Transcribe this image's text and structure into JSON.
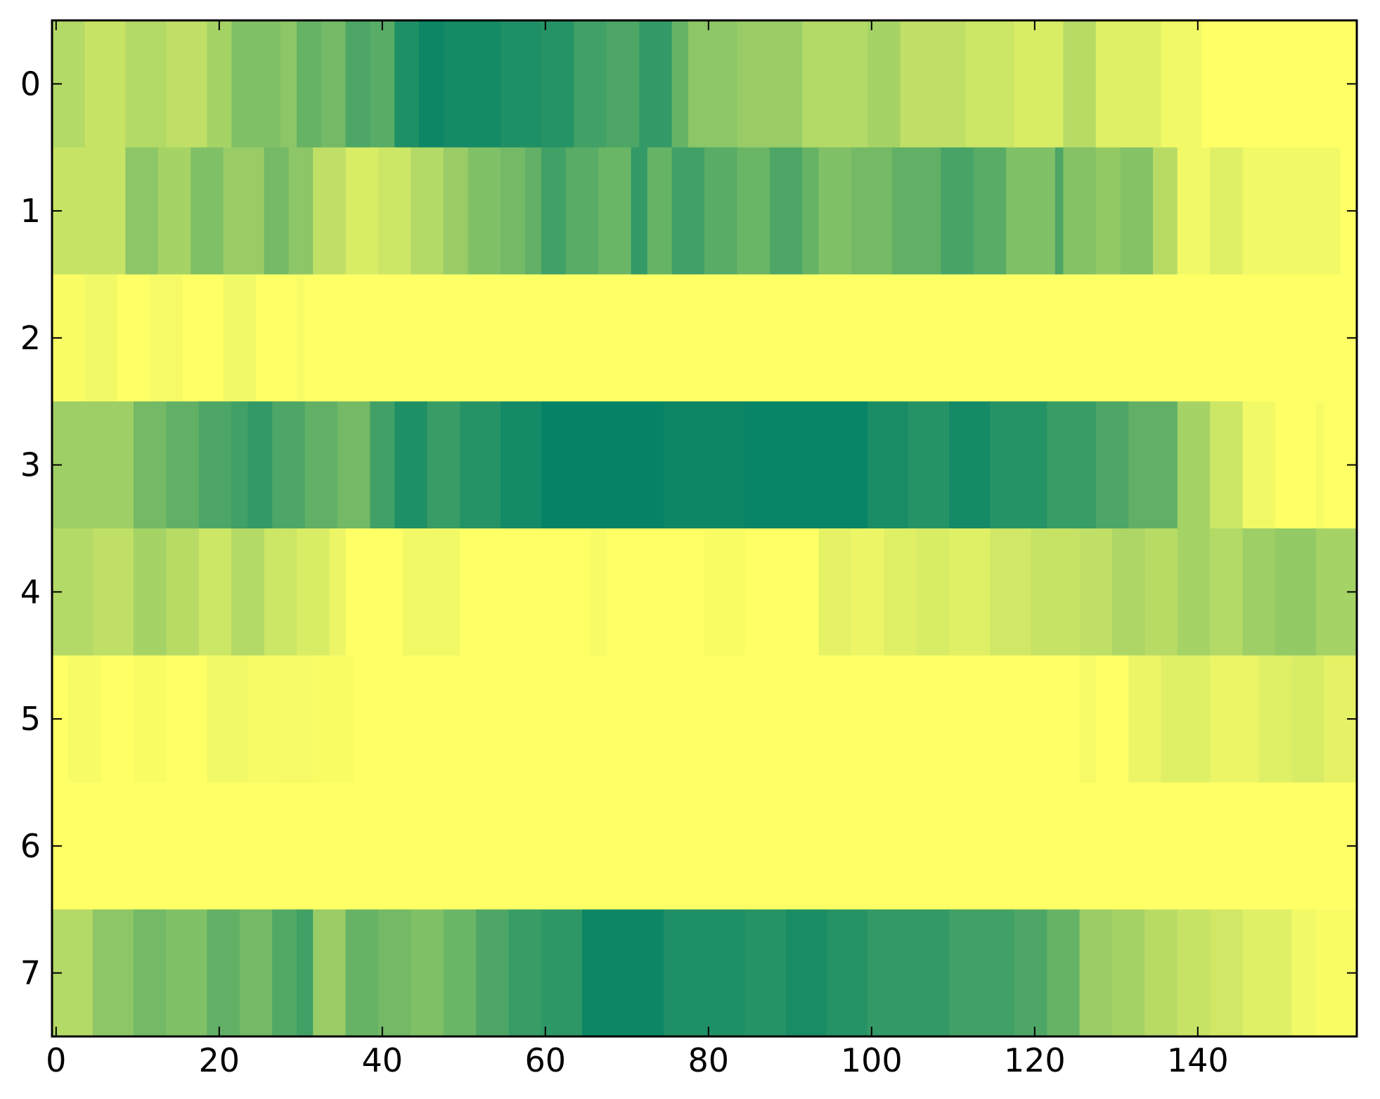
{
  "chart_data": {
    "type": "heatmap",
    "colormap": "summer_r",
    "color_low": "#ffff66",
    "color_high": "#008066",
    "x_range": [
      -0.5,
      159.5
    ],
    "y_range": [
      -0.5,
      7.5
    ],
    "x_ticks": [
      0,
      20,
      40,
      60,
      80,
      100,
      120,
      140
    ],
    "y_ticks": [
      0,
      1,
      2,
      3,
      4,
      5,
      6,
      7
    ],
    "grid": false,
    "colorbar": false,
    "value_range": [
      0,
      1
    ],
    "rows": [
      {
        "row": 0,
        "segments": [
          [
            0,
            0.3
          ],
          [
            4,
            0.22
          ],
          [
            9,
            0.3
          ],
          [
            14,
            0.25
          ],
          [
            19,
            0.35
          ],
          [
            22,
            0.5
          ],
          [
            28,
            0.45
          ],
          [
            30,
            0.6
          ],
          [
            33,
            0.55
          ],
          [
            36,
            0.7
          ],
          [
            39,
            0.65
          ],
          [
            42,
            0.88
          ],
          [
            45,
            0.95
          ],
          [
            48,
            0.92
          ],
          [
            55,
            0.88
          ],
          [
            60,
            0.85
          ],
          [
            64,
            0.75
          ],
          [
            68,
            0.7
          ],
          [
            72,
            0.8
          ],
          [
            76,
            0.6
          ],
          [
            78,
            0.45
          ],
          [
            84,
            0.4
          ],
          [
            92,
            0.3
          ],
          [
            100,
            0.35
          ],
          [
            104,
            0.25
          ],
          [
            112,
            0.2
          ],
          [
            118,
            0.15
          ],
          [
            124,
            0.28
          ],
          [
            128,
            0.12
          ],
          [
            136,
            0.05
          ],
          [
            141,
            0.0
          ]
        ]
      },
      {
        "row": 1,
        "segments": [
          [
            0,
            0.22
          ],
          [
            9,
            0.45
          ],
          [
            13,
            0.35
          ],
          [
            17,
            0.5
          ],
          [
            21,
            0.4
          ],
          [
            26,
            0.55
          ],
          [
            29,
            0.45
          ],
          [
            32,
            0.25
          ],
          [
            36,
            0.15
          ],
          [
            40,
            0.2
          ],
          [
            44,
            0.3
          ],
          [
            48,
            0.4
          ],
          [
            51,
            0.5
          ],
          [
            55,
            0.55
          ],
          [
            58,
            0.62
          ],
          [
            60,
            0.75
          ],
          [
            63,
            0.65
          ],
          [
            67,
            0.58
          ],
          [
            71,
            0.8
          ],
          [
            73,
            0.6
          ],
          [
            76,
            0.75
          ],
          [
            80,
            0.65
          ],
          [
            84,
            0.58
          ],
          [
            88,
            0.7
          ],
          [
            92,
            0.6
          ],
          [
            94,
            0.5
          ],
          [
            98,
            0.55
          ],
          [
            103,
            0.62
          ],
          [
            109,
            0.72
          ],
          [
            113,
            0.65
          ],
          [
            117,
            0.5
          ],
          [
            123,
            0.7
          ],
          [
            124,
            0.48
          ],
          [
            128,
            0.42
          ],
          [
            131,
            0.48
          ],
          [
            135,
            0.28
          ],
          [
            138,
            0.05
          ],
          [
            142,
            0.12
          ],
          [
            146,
            0.05
          ],
          [
            158,
            0.0
          ]
        ]
      },
      {
        "row": 2,
        "segments": [
          [
            0,
            0.02
          ],
          [
            4,
            0.05
          ],
          [
            8,
            0.0
          ],
          [
            12,
            0.04
          ],
          [
            16,
            0.0
          ],
          [
            21,
            0.05
          ],
          [
            25,
            0.0
          ],
          [
            30,
            0.03
          ],
          [
            31,
            0.0
          ],
          [
            44,
            0.0
          ],
          [
            160,
            0.0
          ]
        ]
      },
      {
        "row": 3,
        "segments": [
          [
            0,
            0.38
          ],
          [
            10,
            0.55
          ],
          [
            14,
            0.62
          ],
          [
            18,
            0.7
          ],
          [
            22,
            0.75
          ],
          [
            24,
            0.8
          ],
          [
            27,
            0.7
          ],
          [
            31,
            0.62
          ],
          [
            35,
            0.55
          ],
          [
            39,
            0.75
          ],
          [
            42,
            0.88
          ],
          [
            46,
            0.78
          ],
          [
            50,
            0.85
          ],
          [
            55,
            0.92
          ],
          [
            60,
            0.98
          ],
          [
            75,
            0.95
          ],
          [
            85,
            0.97
          ],
          [
            100,
            0.9
          ],
          [
            105,
            0.85
          ],
          [
            110,
            0.92
          ],
          [
            115,
            0.85
          ],
          [
            122,
            0.78
          ],
          [
            128,
            0.7
          ],
          [
            132,
            0.62
          ],
          [
            138,
            0.35
          ],
          [
            142,
            0.2
          ],
          [
            146,
            0.05
          ],
          [
            150,
            0.0
          ],
          [
            155,
            0.03
          ],
          [
            156,
            0.0
          ]
        ]
      },
      {
        "row": 4,
        "segments": [
          [
            0,
            0.3
          ],
          [
            5,
            0.25
          ],
          [
            10,
            0.35
          ],
          [
            14,
            0.28
          ],
          [
            18,
            0.2
          ],
          [
            22,
            0.3
          ],
          [
            26,
            0.2
          ],
          [
            30,
            0.15
          ],
          [
            34,
            0.08
          ],
          [
            36,
            0.0
          ],
          [
            43,
            0.05
          ],
          [
            50,
            0.0
          ],
          [
            66,
            0.03
          ],
          [
            68,
            0.0
          ],
          [
            80,
            0.02
          ],
          [
            85,
            0.0
          ],
          [
            94,
            0.1
          ],
          [
            98,
            0.08
          ],
          [
            102,
            0.12
          ],
          [
            106,
            0.15
          ],
          [
            110,
            0.12
          ],
          [
            115,
            0.18
          ],
          [
            120,
            0.22
          ],
          [
            126,
            0.25
          ],
          [
            130,
            0.32
          ],
          [
            134,
            0.28
          ],
          [
            138,
            0.35
          ],
          [
            142,
            0.3
          ],
          [
            146,
            0.38
          ],
          [
            150,
            0.42
          ],
          [
            155,
            0.35
          ]
        ]
      },
      {
        "row": 5,
        "segments": [
          [
            0,
            0.0
          ],
          [
            2,
            0.03
          ],
          [
            6,
            0.0
          ],
          [
            10,
            0.02
          ],
          [
            14,
            0.0
          ],
          [
            19,
            0.05
          ],
          [
            24,
            0.03
          ],
          [
            28,
            0.04
          ],
          [
            32,
            0.02
          ],
          [
            37,
            0.0
          ],
          [
            126,
            0.04
          ],
          [
            128,
            0.0
          ],
          [
            132,
            0.08
          ],
          [
            136,
            0.12
          ],
          [
            142,
            0.08
          ],
          [
            148,
            0.12
          ],
          [
            152,
            0.15
          ],
          [
            156,
            0.1
          ]
        ]
      },
      {
        "row": 6,
        "segments": [
          [
            0,
            0.0
          ],
          [
            160,
            0.0
          ]
        ]
      },
      {
        "row": 7,
        "segments": [
          [
            0,
            0.3
          ],
          [
            5,
            0.45
          ],
          [
            10,
            0.55
          ],
          [
            14,
            0.5
          ],
          [
            19,
            0.62
          ],
          [
            23,
            0.55
          ],
          [
            27,
            0.68
          ],
          [
            30,
            0.75
          ],
          [
            32,
            0.4
          ],
          [
            36,
            0.6
          ],
          [
            40,
            0.55
          ],
          [
            44,
            0.5
          ],
          [
            48,
            0.58
          ],
          [
            52,
            0.7
          ],
          [
            56,
            0.78
          ],
          [
            60,
            0.82
          ],
          [
            65,
            0.95
          ],
          [
            75,
            0.88
          ],
          [
            85,
            0.85
          ],
          [
            90,
            0.9
          ],
          [
            95,
            0.85
          ],
          [
            100,
            0.8
          ],
          [
            110,
            0.75
          ],
          [
            118,
            0.7
          ],
          [
            122,
            0.6
          ],
          [
            126,
            0.4
          ],
          [
            130,
            0.35
          ],
          [
            134,
            0.28
          ],
          [
            138,
            0.22
          ],
          [
            142,
            0.18
          ],
          [
            146,
            0.12
          ],
          [
            152,
            0.05
          ],
          [
            155,
            0.02
          ]
        ]
      }
    ]
  }
}
